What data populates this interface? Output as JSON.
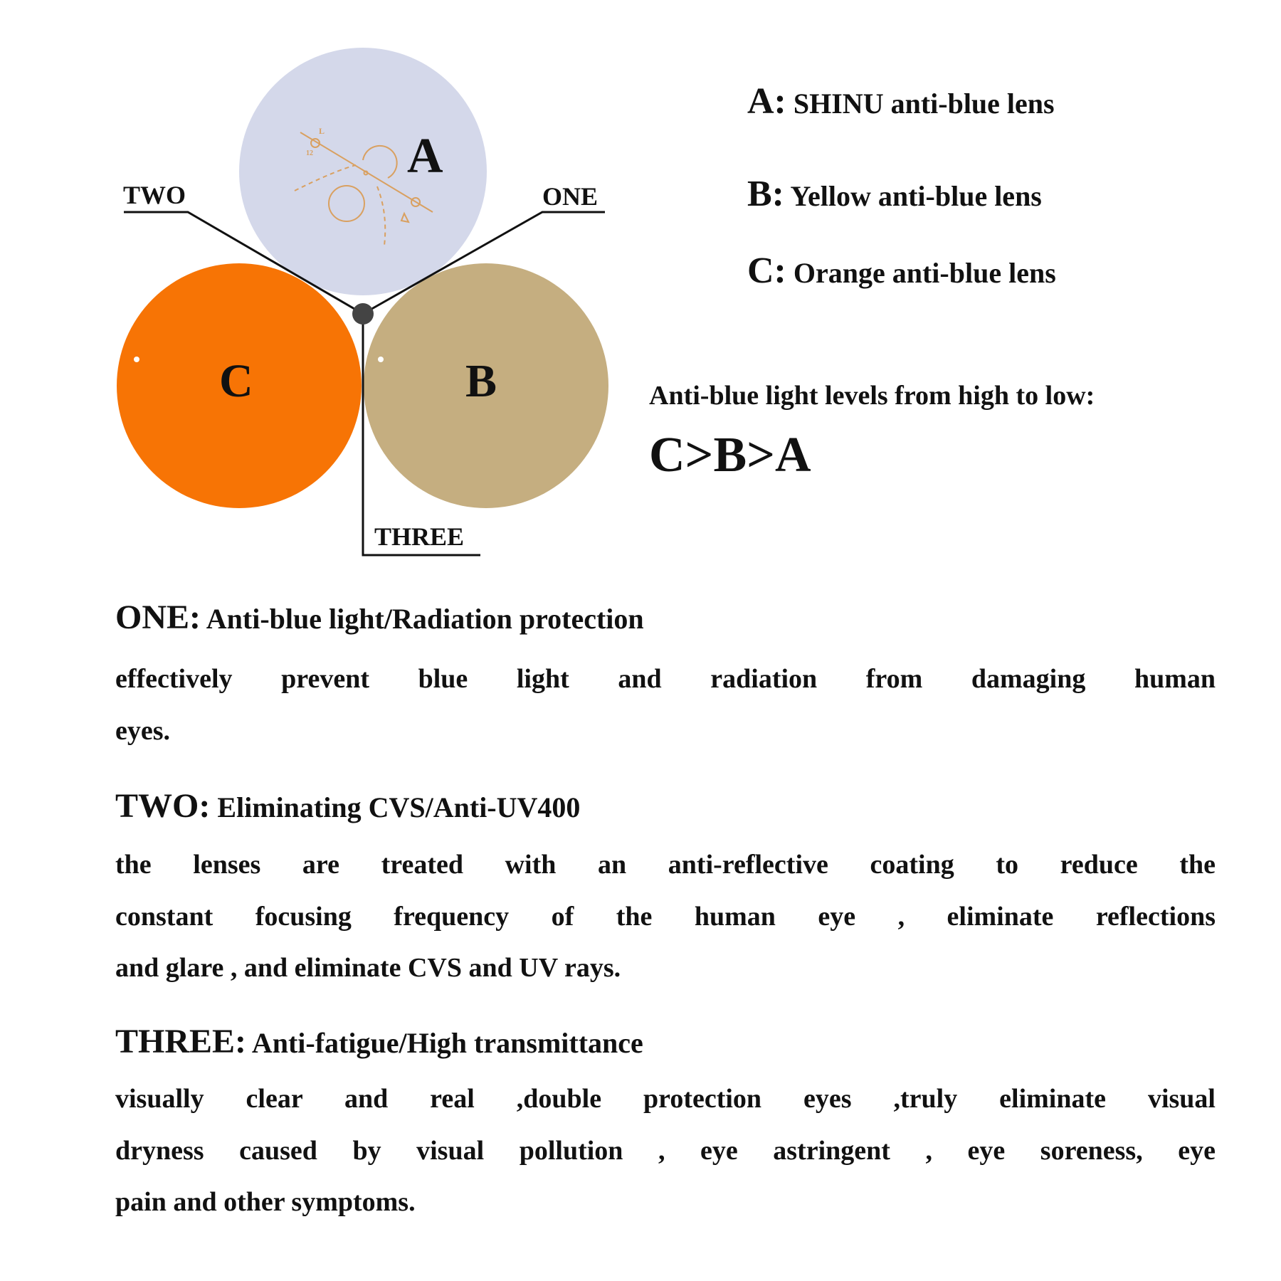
{
  "diagram": {
    "lenses": [
      {
        "letter": "A",
        "color": "#d4d8ea"
      },
      {
        "letter": "B",
        "color": "#c5ae80"
      },
      {
        "letter": "C",
        "color": "#f77405"
      }
    ],
    "callouts": {
      "one": "ONE",
      "two": "TWO",
      "three": "THREE"
    },
    "lens_marking_text": {
      "l": "L",
      "num": "12"
    }
  },
  "legend": [
    {
      "key": "A:",
      "text": "SHINU anti-blue lens"
    },
    {
      "key": "B:",
      "text": "Yellow anti-blue lens"
    },
    {
      "key": "C:",
      "text": "Orange anti-blue lens"
    }
  ],
  "ranking": {
    "label": "Anti-blue light levels from high to low:",
    "value": "C>B>A"
  },
  "features": [
    {
      "key": "ONE:",
      "title": "Anti-blue light/Radiation protection",
      "lines": [
        "effectively prevent blue light  and  radiation  from  damaging human",
        "eyes."
      ]
    },
    {
      "key": "TWO:",
      "title": "Eliminating CVS/Anti-UV400",
      "lines": [
        "the lenses are treated with an  anti-reflective  coating  to  reduce the",
        "constant focusing frequency of the human eye , eliminate  reflections",
        "and glare , and eliminate CVS and UV rays."
      ]
    },
    {
      "key": "THREE:",
      "title": "Anti-fatigue/High transmittance",
      "lines": [
        "visually clear and real ,double protection eyes ,truly eliminate visual",
        "dryness caused by visual pollution , eye astringent , eye soreness, eye",
        "pain and other symptoms."
      ]
    }
  ]
}
